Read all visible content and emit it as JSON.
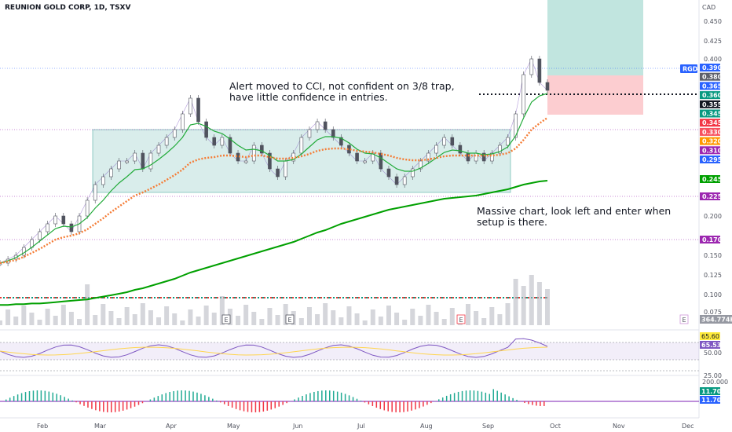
{
  "header": {
    "title": "REUNION GOLD CORP, 1D, TSXV",
    "currency": "CAD"
  },
  "annotations": [
    {
      "lines": [
        "Alert moved to CCI, not confident on 3/8 trap,",
        "have little confidence in entries."
      ]
    },
    {
      "lines": [
        "Massive chart, look left and enter when",
        "setup is there."
      ]
    }
  ],
  "earnings_marker": "E",
  "ticker_tag": "RGD",
  "volume_label": "364.774K",
  "chart_data": {
    "type": "line",
    "x_ticks": [
      "Feb",
      "Mar",
      "Apr",
      "May",
      "Jun",
      "Jul",
      "Aug",
      "Sep",
      "Oct",
      "Nov",
      "Dec"
    ],
    "price_axis": {
      "ticks": [
        "0.450",
        "0.425",
        "0.400",
        "0.225",
        "0.200",
        "0.150",
        "0.125",
        "0.100",
        "0.075"
      ],
      "ylim": [
        0.062,
        0.47
      ]
    },
    "price_tags": [
      {
        "label": "0.390",
        "value": 0.39,
        "color": "#2962ff"
      },
      {
        "label": "0.380",
        "value": 0.38,
        "color": "#5d606b"
      },
      {
        "label": "0.365",
        "value": 0.365,
        "color": "#2962ff"
      },
      {
        "label": "0.360",
        "value": 0.36,
        "color": "#089981"
      },
      {
        "label": "0.355",
        "value": 0.355,
        "color": "#131722"
      },
      {
        "label": "0.345",
        "value": 0.345,
        "color": "#089981"
      },
      {
        "label": "0.345",
        "value": 0.34,
        "color": "#f23645"
      },
      {
        "label": "0.330",
        "value": 0.33,
        "color": "#f7525f"
      },
      {
        "label": "0.320",
        "value": 0.32,
        "color": "#ff9800"
      },
      {
        "label": "0.310",
        "value": 0.31,
        "color": "#9c27b0"
      },
      {
        "label": "0.295",
        "value": 0.295,
        "color": "#2962ff"
      },
      {
        "label": "0.245",
        "value": 0.245,
        "color": "#00a000"
      },
      {
        "label": "0.225",
        "value": 0.225,
        "color": "#9c27b0"
      },
      {
        "label": "0.170",
        "value": 0.17,
        "color": "#9c27b0"
      }
    ],
    "rsi": {
      "label_a": "65.60",
      "label_b": "65.53",
      "ylim": [
        20,
        80
      ],
      "ticks": [
        "50.00",
        "25.00"
      ]
    },
    "macd": {
      "ticks": [
        "200.000"
      ],
      "label_a": "11.705",
      "label_b": "11.705"
    },
    "series": [
      {
        "name": "price",
        "color": "#7e57c2",
        "values": [
          0.14,
          0.145,
          0.15,
          0.16,
          0.17,
          0.18,
          0.19,
          0.2,
          0.19,
          0.18,
          0.2,
          0.22,
          0.24,
          0.25,
          0.26,
          0.27,
          0.27,
          0.28,
          0.26,
          0.28,
          0.29,
          0.3,
          0.31,
          0.33,
          0.35,
          0.32,
          0.3,
          0.29,
          0.3,
          0.28,
          0.27,
          0.27,
          0.29,
          0.28,
          0.26,
          0.25,
          0.27,
          0.28,
          0.3,
          0.31,
          0.32,
          0.31,
          0.3,
          0.29,
          0.28,
          0.27,
          0.27,
          0.28,
          0.26,
          0.25,
          0.24,
          0.25,
          0.26,
          0.27,
          0.28,
          0.29,
          0.3,
          0.29,
          0.28,
          0.27,
          0.28,
          0.27,
          0.28,
          0.29,
          0.3,
          0.33,
          0.38,
          0.4,
          0.37,
          0.36
        ]
      },
      {
        "name": "ma_short",
        "color": "#22ab3a",
        "values": [
          0.14,
          0.143,
          0.147,
          0.153,
          0.16,
          0.168,
          0.176,
          0.184,
          0.187,
          0.186,
          0.19,
          0.198,
          0.21,
          0.22,
          0.232,
          0.242,
          0.25,
          0.259,
          0.26,
          0.265,
          0.272,
          0.28,
          0.289,
          0.3,
          0.316,
          0.318,
          0.314,
          0.308,
          0.305,
          0.298,
          0.29,
          0.284,
          0.285,
          0.283,
          0.277,
          0.27,
          0.27,
          0.272,
          0.279,
          0.288,
          0.297,
          0.301,
          0.301,
          0.299,
          0.293,
          0.285,
          0.28,
          0.279,
          0.274,
          0.267,
          0.26,
          0.257,
          0.257,
          0.261,
          0.267,
          0.274,
          0.281,
          0.284,
          0.283,
          0.28,
          0.28,
          0.278,
          0.279,
          0.282,
          0.288,
          0.302,
          0.325,
          0.345,
          0.353,
          0.356
        ]
      },
      {
        "name": "ma_mid",
        "color": "#f57c35",
        "values": [
          0.14,
          0.142,
          0.144,
          0.148,
          0.153,
          0.158,
          0.164,
          0.17,
          0.173,
          0.175,
          0.178,
          0.183,
          0.19,
          0.197,
          0.205,
          0.212,
          0.219,
          0.226,
          0.23,
          0.235,
          0.24,
          0.246,
          0.252,
          0.259,
          0.268,
          0.272,
          0.274,
          0.275,
          0.277,
          0.277,
          0.276,
          0.275,
          0.277,
          0.277,
          0.275,
          0.273,
          0.273,
          0.274,
          0.276,
          0.279,
          0.283,
          0.285,
          0.286,
          0.286,
          0.285,
          0.283,
          0.282,
          0.281,
          0.279,
          0.277,
          0.274,
          0.272,
          0.271,
          0.271,
          0.272,
          0.274,
          0.276,
          0.277,
          0.277,
          0.277,
          0.277,
          0.277,
          0.277,
          0.278,
          0.28,
          0.286,
          0.297,
          0.31,
          0.318,
          0.325
        ]
      },
      {
        "name": "ma_long",
        "color": "#00a000",
        "values": [
          0.085,
          0.085,
          0.086,
          0.086,
          0.087,
          0.087,
          0.088,
          0.089,
          0.09,
          0.091,
          0.092,
          0.093,
          0.095,
          0.097,
          0.099,
          0.101,
          0.103,
          0.106,
          0.108,
          0.111,
          0.114,
          0.117,
          0.12,
          0.124,
          0.128,
          0.131,
          0.134,
          0.137,
          0.14,
          0.143,
          0.146,
          0.149,
          0.152,
          0.155,
          0.158,
          0.161,
          0.164,
          0.167,
          0.171,
          0.175,
          0.179,
          0.182,
          0.186,
          0.19,
          0.193,
          0.196,
          0.199,
          0.202,
          0.205,
          0.208,
          0.21,
          0.212,
          0.214,
          0.216,
          0.218,
          0.22,
          0.222,
          0.223,
          0.224,
          0.225,
          0.226,
          0.228,
          0.23,
          0.232,
          0.234,
          0.237,
          0.24,
          0.242,
          0.244,
          0.245
        ]
      }
    ]
  }
}
